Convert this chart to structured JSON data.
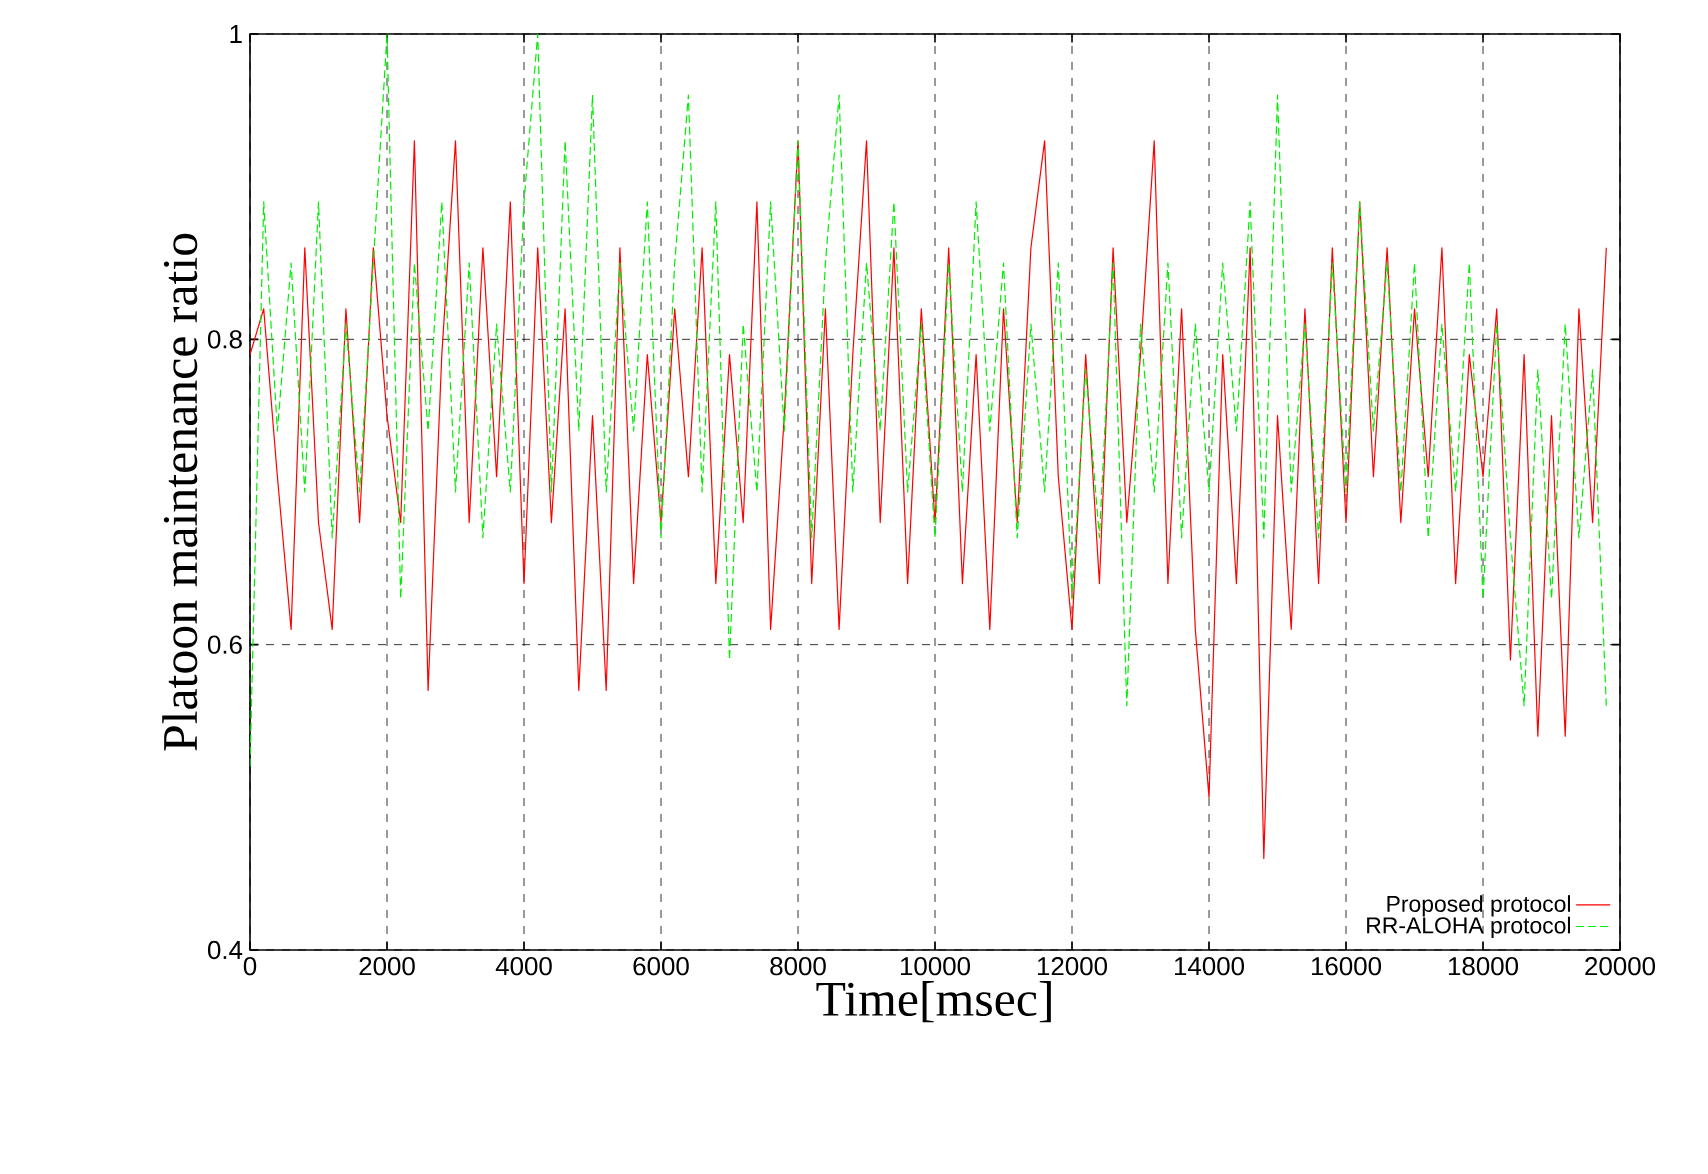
{
  "chart_data": {
    "type": "line",
    "xlabel": "Time[msec]",
    "ylabel": "Platoon maintenance ratio",
    "xlim": [
      0,
      20000
    ],
    "ylim": [
      0.4,
      1
    ],
    "xticks": [
      0,
      2000,
      4000,
      6000,
      8000,
      10000,
      12000,
      14000,
      16000,
      18000,
      20000
    ],
    "yticks": [
      0.4,
      0.6,
      0.8,
      1
    ],
    "grid": true,
    "legend": "bottom right",
    "marker": "none",
    "series": [
      {
        "name": "Proposed protocol",
        "color": "#ff0000",
        "line_style": "solid",
        "x": [
          0,
          200,
          400,
          600,
          800,
          1000,
          1200,
          1400,
          1600,
          1800,
          2000,
          2200,
          2400,
          2600,
          2800,
          3000,
          3200,
          3400,
          3600,
          3800,
          4000,
          4200,
          4400,
          4600,
          4800,
          5000,
          5200,
          5400,
          5600,
          5800,
          6000,
          6200,
          6400,
          6600,
          6800,
          7000,
          7200,
          7400,
          7600,
          7800,
          8000,
          8200,
          8400,
          8600,
          8800,
          9000,
          9200,
          9400,
          9600,
          9800,
          10000,
          10200,
          10400,
          10600,
          10800,
          11000,
          11200,
          11400,
          11600,
          11800,
          12000,
          12200,
          12400,
          12600,
          12800,
          13000,
          13200,
          13400,
          13600,
          13800,
          14000,
          14200,
          14400,
          14600,
          14800,
          15000,
          15200,
          15400,
          15600,
          15800,
          16000,
          16200,
          16400,
          16600,
          16800,
          17000,
          17200,
          17400,
          17600,
          17800,
          18000,
          18200,
          18400,
          18600,
          18800,
          19000,
          19200,
          19400,
          19600,
          19800
        ],
        "values": [
          0.79,
          0.82,
          0.71,
          0.61,
          0.86,
          0.68,
          0.61,
          0.82,
          0.68,
          0.86,
          0.75,
          0.68,
          0.93,
          0.57,
          0.79,
          0.93,
          0.68,
          0.86,
          0.71,
          0.89,
          0.64,
          0.86,
          0.68,
          0.82,
          0.57,
          0.75,
          0.57,
          0.86,
          0.64,
          0.79,
          0.68,
          0.82,
          0.71,
          0.86,
          0.64,
          0.79,
          0.68,
          0.89,
          0.61,
          0.75,
          0.93,
          0.64,
          0.82,
          0.61,
          0.79,
          0.93,
          0.68,
          0.86,
          0.64,
          0.82,
          0.68,
          0.86,
          0.64,
          0.79,
          0.61,
          0.82,
          0.68,
          0.86,
          0.93,
          0.71,
          0.61,
          0.79,
          0.64,
          0.86,
          0.68,
          0.79,
          0.93,
          0.64,
          0.82,
          0.61,
          0.5,
          0.79,
          0.64,
          0.86,
          0.46,
          0.75,
          0.61,
          0.82,
          0.64,
          0.86,
          0.68,
          0.89,
          0.71,
          0.86,
          0.68,
          0.82,
          0.71,
          0.86,
          0.64,
          0.79,
          0.71,
          0.82,
          0.59,
          0.79,
          0.54,
          0.75,
          0.54,
          0.82,
          0.68,
          0.86
        ]
      },
      {
        "name": "RR-ALOHA protocol",
        "color": "#00ee00",
        "line_style": "dashed",
        "x": [
          0,
          200,
          400,
          600,
          800,
          1000,
          1200,
          1400,
          1600,
          1800,
          2000,
          2200,
          2400,
          2600,
          2800,
          3000,
          3200,
          3400,
          3600,
          3800,
          4000,
          4200,
          4400,
          4600,
          4800,
          5000,
          5200,
          5400,
          5600,
          5800,
          6000,
          6200,
          6400,
          6600,
          6800,
          7000,
          7200,
          7400,
          7600,
          7800,
          8000,
          8200,
          8400,
          8600,
          8800,
          9000,
          9200,
          9400,
          9600,
          9800,
          10000,
          10200,
          10400,
          10600,
          10800,
          11000,
          11200,
          11400,
          11600,
          11800,
          12000,
          12200,
          12400,
          12600,
          12800,
          13000,
          13200,
          13400,
          13600,
          13800,
          14000,
          14200,
          14400,
          14600,
          14800,
          15000,
          15200,
          15400,
          15600,
          15800,
          16000,
          16200,
          16400,
          16600,
          16800,
          17000,
          17200,
          17400,
          17600,
          17800,
          18000,
          18200,
          18400,
          18600,
          18800,
          19000,
          19200,
          19400,
          19600,
          19800
        ],
        "values": [
          0.52,
          0.89,
          0.74,
          0.85,
          0.7,
          0.89,
          0.67,
          0.81,
          0.7,
          0.85,
          1.0,
          0.63,
          0.85,
          0.74,
          0.89,
          0.7,
          0.85,
          0.67,
          0.81,
          0.7,
          0.89,
          1.0,
          0.7,
          0.93,
          0.74,
          0.96,
          0.7,
          0.85,
          0.74,
          0.89,
          0.67,
          0.85,
          0.96,
          0.7,
          0.89,
          0.59,
          0.81,
          0.7,
          0.89,
          0.74,
          0.93,
          0.67,
          0.85,
          0.96,
          0.7,
          0.85,
          0.74,
          0.89,
          0.7,
          0.81,
          0.67,
          0.85,
          0.7,
          0.89,
          0.74,
          0.85,
          0.67,
          0.81,
          0.7,
          0.85,
          0.63,
          0.78,
          0.67,
          0.85,
          0.56,
          0.81,
          0.7,
          0.85,
          0.67,
          0.81,
          0.7,
          0.85,
          0.74,
          0.89,
          0.67,
          0.96,
          0.7,
          0.81,
          0.67,
          0.85,
          0.7,
          0.89,
          0.74,
          0.85,
          0.7,
          0.85,
          0.67,
          0.81,
          0.7,
          0.85,
          0.63,
          0.81,
          0.67,
          0.56,
          0.78,
          0.63,
          0.81,
          0.67,
          0.78,
          0.56
        ]
      }
    ]
  }
}
